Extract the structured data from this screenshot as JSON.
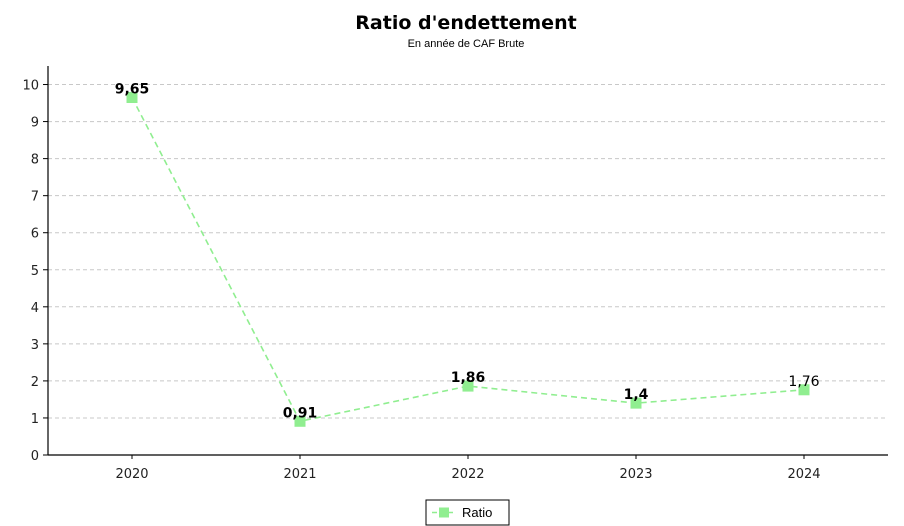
{
  "chart_data": {
    "type": "line",
    "title": "Ratio d'endettement",
    "subtitle": "En année de CAF Brute",
    "xlabel": "",
    "ylabel": "",
    "categories": [
      "2020",
      "2021",
      "2022",
      "2023",
      "2024"
    ],
    "ylim": [
      0,
      10.5
    ],
    "yticks": [
      0,
      1,
      2,
      3,
      4,
      5,
      6,
      7,
      8,
      9,
      10
    ],
    "grid": true,
    "legend_position": "bottom-center",
    "series": [
      {
        "name": "Ratio",
        "values": [
          9.65,
          0.91,
          1.86,
          1.4,
          1.76
        ],
        "labels": [
          "9,65",
          "0,91",
          "1,86",
          "1,4",
          "1,76"
        ],
        "color": "#90ee90",
        "line_style": "dashed",
        "marker": "square"
      }
    ]
  }
}
